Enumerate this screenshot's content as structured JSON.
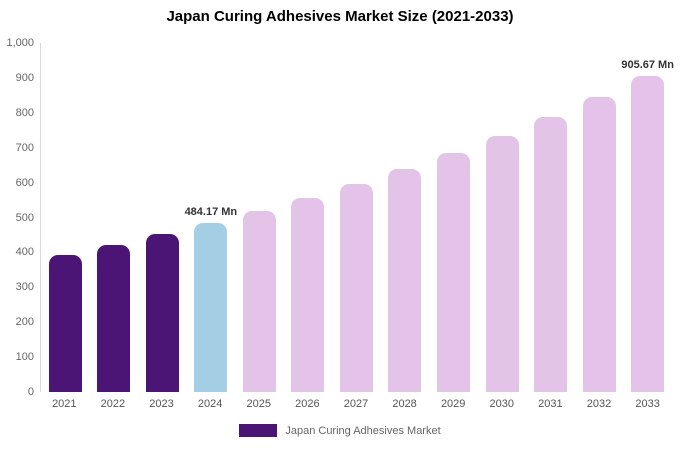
{
  "title": "Japan Curing Adhesives Market Size (2021-2033)",
  "legend": {
    "label": "Japan Curing Adhesives Market",
    "swatch_color": "#4a1574"
  },
  "colors": {
    "historical": "#4a1574",
    "current": "#a3cee4",
    "forecast": "#e3c3e8",
    "axis_line": "#d9d9d9",
    "tick_text": "#666666",
    "annotation_text": "#333333"
  },
  "chart_data": {
    "type": "bar",
    "title": "Japan Curing Adhesives Market Size (2021-2033)",
    "xlabel": "",
    "ylabel": "",
    "ylim": [
      0,
      1000
    ],
    "ytick_step": 100,
    "grid": false,
    "legend_position": "bottom",
    "categories": [
      "2021",
      "2022",
      "2023",
      "2024",
      "2025",
      "2026",
      "2027",
      "2028",
      "2029",
      "2030",
      "2031",
      "2032",
      "2033"
    ],
    "values": [
      393,
      421,
      452,
      484.17,
      519,
      556,
      597,
      640,
      686,
      735,
      788,
      845,
      905.67
    ],
    "bar_color_keys": [
      "historical",
      "historical",
      "historical",
      "current",
      "forecast",
      "forecast",
      "forecast",
      "forecast",
      "forecast",
      "forecast",
      "forecast",
      "forecast",
      "forecast"
    ],
    "annotations": [
      {
        "index": 3,
        "text": "484.17 Mn"
      },
      {
        "index": 12,
        "text": "905.67 Mn"
      }
    ]
  }
}
